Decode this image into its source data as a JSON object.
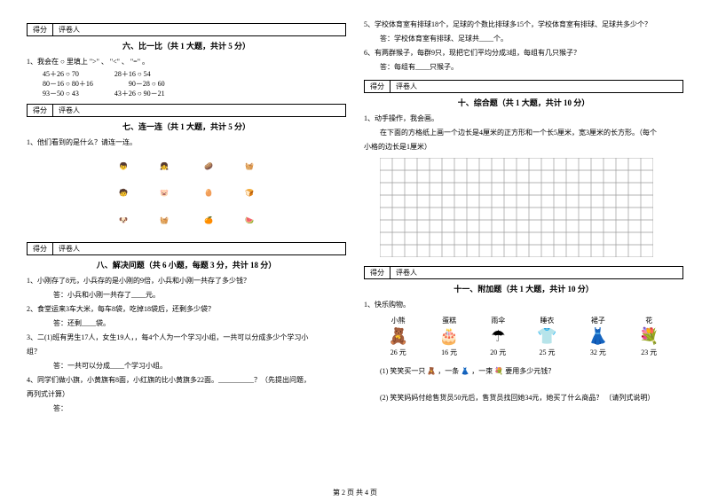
{
  "scorebox": {
    "score": "得分",
    "reviewer": "评卷人"
  },
  "sections": {
    "s6": {
      "title": "六、比一比（共 1 大题，共计 5 分）"
    },
    "s7": {
      "title": "七、连一连（共 1 大题，共计 5 分）"
    },
    "s8": {
      "title": "八、解决问题（共 6 小题，每题 3 分，共计 18 分）"
    },
    "s10": {
      "title": "十、综合题（共 1 大题，共计 10 分）"
    },
    "s11": {
      "title": "十一、附加题（共 1 大题，共计 10 分）"
    }
  },
  "q6": {
    "stem": "1、我会在 ○ 里填上 \">\" 、 \"<\" 、 \"=\" 。",
    "r1a": "45＋26 ○ 70",
    "r1b": "28＋16 ○ 54",
    "r2a": "80－16 ○ 80＋16",
    "r2b": "90－28 ○ 60",
    "r3a": "93－50 ○ 43",
    "r3b": "43＋26 ○ 90－21"
  },
  "q7": {
    "stem": "1、他们看到的是什么？请连一连。"
  },
  "q8": {
    "q1": "1、小刚存了8元，小兵存的是小刚的9倍，小兵和小刚一共存了多少钱？",
    "a1": "答：小兵和小刚一共存了____元。",
    "q2": "2、食堂运来3车大米，每车8袋，吃掉18袋后，还剩多少袋？",
    "a2": "答：还剩____袋。",
    "q3a": "3、二(1)班有男生17人，女生19人，，每4个人为一个学习小组，一共可以分成多少个学习小",
    "q3b": "组？",
    "a3": "答：一共可以分成____个学习小组。",
    "q4a": "4、同学们做小旗，小黄旗有8面，小红旗的比小黄旗多22面。__________？（先提出问题，",
    "q4b": "再列式计算）",
    "a4": "答："
  },
  "right": {
    "q5a": "5、学校体育室有排球18个，足球的个数比排球多15个，学校体育室有排球、足球共多少个？",
    "a5": "答：学校体育室有排球、足球共____个。",
    "q6": "6、有两群猴子，每群9只，现把它们平均分成3组，每组有几只猴子？",
    "a6": "答：每组有____只猴子。"
  },
  "q10": {
    "stem": "1、动手操作，我会画。",
    "line1": "在下面的方格纸上画一个边长是4厘米的正方形和一个长5厘米，宽3厘米的长方形。（每个",
    "line2": "小格的边长是1厘米）"
  },
  "grid": {
    "cols": 22,
    "rows": 8,
    "cell": 14,
    "stroke": "#9a9a9a",
    "bg": "#ffffff"
  },
  "q11": {
    "stem": "1、快乐购物。",
    "items": [
      {
        "name": "小熊",
        "icon": "🧸",
        "price": "26 元"
      },
      {
        "name": "蛋糕",
        "icon": "🎂",
        "price": "16 元"
      },
      {
        "name": "雨伞",
        "icon": "☂",
        "price": "20 元"
      },
      {
        "name": "睡衣",
        "icon": "👕",
        "price": "25 元"
      },
      {
        "name": "裙子",
        "icon": "👗",
        "price": "32 元"
      },
      {
        "name": "花",
        "icon": "💐",
        "price": "23 元"
      }
    ],
    "sub1a": "(1) 笑笑买一只",
    "sub1b": "，一条",
    "sub1c": "，一束",
    "sub1d": "要用多少元钱？",
    "icon1": "🧸",
    "icon2": "👗",
    "icon3": "💐",
    "sub2": "(2) 笑笑妈妈付给售货员50元后，售货员找回她34元，她买了什么商品？ （请列式说明）"
  },
  "footer": "第 2 页 共 4 页",
  "matchIcons": {
    "left": [
      "👦",
      "👧",
      "🧒",
      "🐷",
      "🐶",
      "🧺"
    ],
    "right": [
      "🥔",
      "🧺",
      "🥚",
      "🍞",
      "🍊",
      "🍉"
    ]
  }
}
